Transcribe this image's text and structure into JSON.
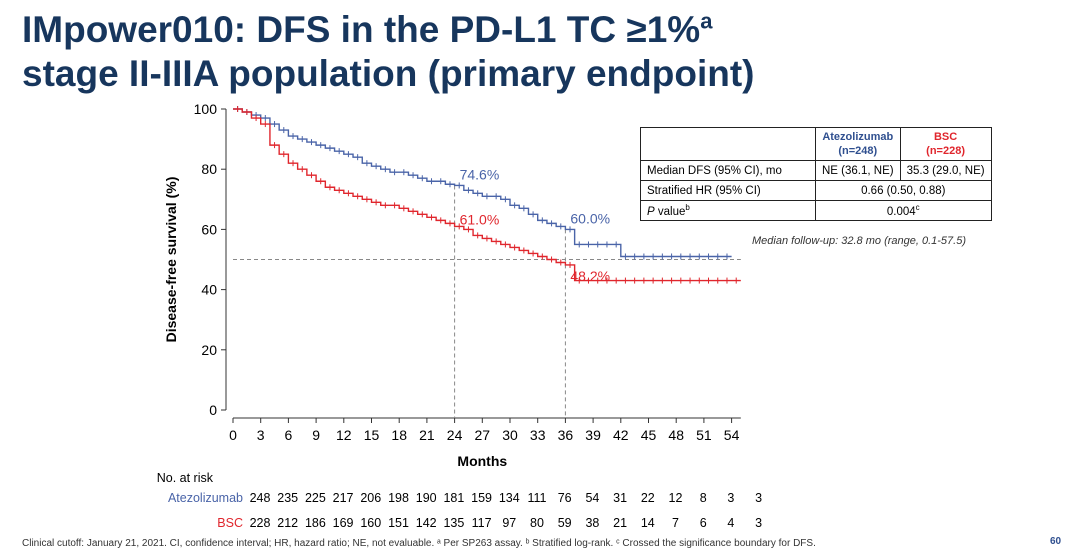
{
  "slide": {
    "title_main": "IMpower010: DFS in the PD-L1 TC ≥1%",
    "title_sup": "a",
    "title_line2": "stage II-IIIA population (primary endpoint)",
    "footnote": "Clinical cutoff: January 21, 2021. CI, confidence interval; HR, hazard ratio; NE, not evaluable. ᵃ Per SP263 assay. ᵇ Stratified log-rank. ᶜ Crossed the significance boundary for DFS.",
    "page_number": "60",
    "followup": "Median follow-up: 32.8 mo (range, 0.1-57.5)"
  },
  "table": {
    "col_a": [
      "Atezolizumab",
      "(n=248)"
    ],
    "col_b": [
      "BSC",
      "(n=228)"
    ],
    "rows": [
      {
        "label": "Median DFS (95% CI), mo",
        "a": "NE (36.1, NE)",
        "b": "35.3 (29.0, NE)"
      },
      {
        "label": "Stratified HR (95% CI)",
        "merged": "0.66 (0.50, 0.88)"
      },
      {
        "label_italic": "P",
        "label_rest": " value",
        "label_sup": "b",
        "merged": "0.004",
        "merged_sup": "c"
      }
    ]
  },
  "chart_data": {
    "type": "line",
    "step": true,
    "xlabel": "Months",
    "ylabel": "Disease-free survival (%)",
    "xlim": [
      0,
      55
    ],
    "ylim": [
      0,
      100
    ],
    "xticks": [
      0,
      3,
      6,
      9,
      12,
      15,
      18,
      21,
      24,
      27,
      30,
      33,
      36,
      39,
      42,
      45,
      48,
      51,
      54
    ],
    "yticks": [
      0,
      20,
      40,
      60,
      80,
      100
    ],
    "colors": {
      "atezolizumab": "#4a64a8",
      "bsc": "#e0262d"
    },
    "series": [
      {
        "name": "Atezolizumab",
        "color": "#4a64a8",
        "x": [
          0,
          1,
          2,
          3,
          4,
          5,
          6,
          7,
          8,
          9,
          10,
          11,
          12,
          13,
          14,
          15,
          16,
          17,
          18,
          19,
          20,
          21,
          22,
          23,
          24,
          25,
          26,
          27,
          28,
          29,
          30,
          31,
          32,
          33,
          34,
          35,
          36,
          37,
          38,
          39,
          40,
          41,
          42,
          43,
          44,
          45,
          46,
          47,
          48,
          49,
          50,
          51,
          52,
          53,
          54
        ],
        "y": [
          100,
          99,
          98,
          97,
          95,
          93,
          91,
          90,
          89,
          88,
          87,
          86,
          85,
          84,
          82,
          81,
          80,
          79,
          79,
          78,
          77,
          76,
          76,
          75,
          74.6,
          73,
          72,
          71,
          71,
          70,
          68,
          67,
          65,
          63,
          62,
          61,
          60,
          55,
          55,
          55,
          55,
          55,
          51,
          51,
          51,
          51,
          51,
          51,
          51,
          51,
          51,
          51,
          51,
          51,
          51
        ],
        "annotations": [
          {
            "x": 24,
            "y": 74.6,
            "label": "74.6%"
          },
          {
            "x": 36,
            "y": 60.0,
            "label": "60.0%"
          }
        ]
      },
      {
        "name": "BSC",
        "color": "#e0262d",
        "x": [
          0,
          1,
          2,
          3,
          4,
          5,
          6,
          7,
          8,
          9,
          10,
          11,
          12,
          13,
          14,
          15,
          16,
          17,
          18,
          19,
          20,
          21,
          22,
          23,
          24,
          25,
          26,
          27,
          28,
          29,
          30,
          31,
          32,
          33,
          34,
          35,
          36,
          37,
          38,
          39,
          40,
          41,
          42,
          43,
          44,
          45,
          46,
          47,
          48,
          49,
          50,
          51,
          52,
          53,
          54,
          55
        ],
        "y": [
          100,
          99,
          97,
          95,
          88,
          85,
          82,
          80,
          78,
          76,
          74,
          73,
          72,
          71,
          70,
          69,
          68,
          68,
          67,
          66,
          65,
          64,
          63,
          62,
          61.0,
          60,
          58,
          57,
          56,
          55,
          54,
          53,
          52,
          51,
          50,
          49,
          48.2,
          43,
          43,
          43,
          43,
          43,
          43,
          43,
          43,
          43,
          43,
          43,
          43,
          43,
          43,
          43,
          43,
          43,
          43,
          43
        ],
        "annotations": [
          {
            "x": 24,
            "y": 61.0,
            "label": "61.0%"
          },
          {
            "x": 36,
            "y": 48.2,
            "label": "48.2%"
          }
        ]
      }
    ],
    "reference_lines": {
      "horizontal_y": 50,
      "vertical_x": [
        24,
        36
      ]
    },
    "at_risk": {
      "title": "No. at risk",
      "rows": [
        {
          "name": "Atezolizumab",
          "values": [
            248,
            235,
            225,
            217,
            206,
            198,
            190,
            181,
            159,
            134,
            111,
            76,
            54,
            31,
            22,
            12,
            8,
            3,
            3
          ]
        },
        {
          "name": "BSC",
          "values": [
            228,
            212,
            186,
            169,
            160,
            151,
            142,
            135,
            117,
            97,
            80,
            59,
            38,
            21,
            14,
            7,
            6,
            4,
            3
          ]
        }
      ]
    }
  }
}
